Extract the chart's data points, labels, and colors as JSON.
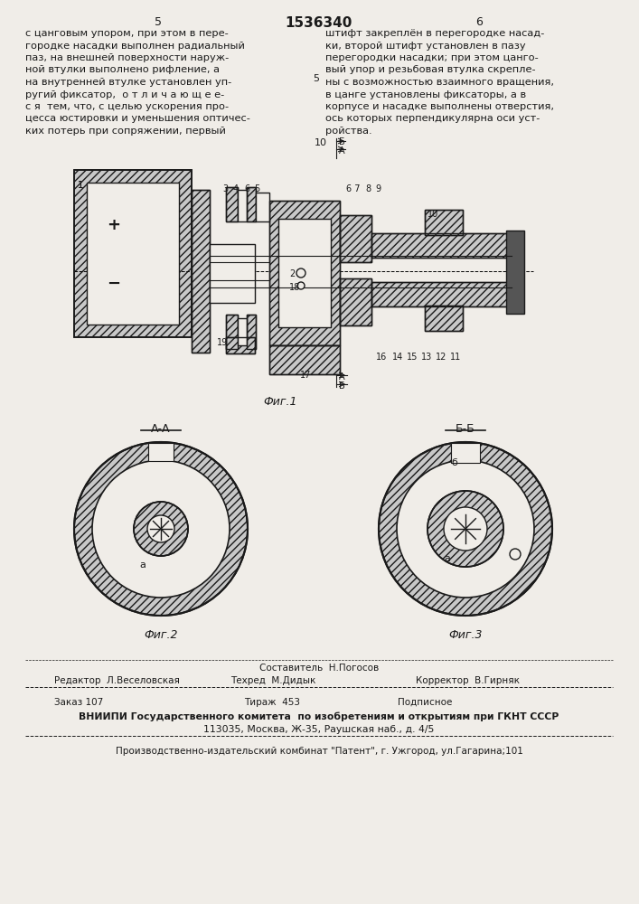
{
  "page_width": 7.07,
  "page_height": 10.0,
  "bg_color": "#f0ede8",
  "text_color": "#1a1a1a",
  "line_color": "#1a1a1a",
  "header_page_left": "5",
  "header_title": "1536340",
  "header_page_right": "6",
  "col1_text": [
    "с цанговым упором, при этом в пере-",
    "городке насадки выполнен радиальный",
    "паз, на внешней поверхности наруж-",
    "ной втулки выполнено рифление, а",
    "на внутренней втулке установлен уп-",
    "ругий фиксатор,  о т л и ч а ю щ е е-",
    "с я  тем, что, с целью ускорения про-",
    "цесса юстировки и уменьшения оптичес-",
    "ких потерь при сопряжении, первый"
  ],
  "col2_text": [
    "штифт закреплён в перегородке насад-",
    "ки, второй штифт установлен в пазу",
    "перегородки насадки; при этом цанго-",
    "вый упор и резьбовая втулка скрепле-",
    "ны с возможностью взаимного вращения,",
    "в цанге установлены фиксаторы, а в",
    "корпусе и насадке выполнены отверстия,",
    "ось которых перпендикулярна оси уст-",
    "ройства."
  ],
  "fig1_label": "Фиг.1",
  "fig2_label": "Фиг.2",
  "fig3_label": "Фиг.3",
  "fig2_section_label": "А-А",
  "fig3_section_label": "Б-Б",
  "footer_composer_label": "Составитель  Н.Погосов",
  "footer_editor_label": "Редактор  Л.Веселовская",
  "footer_techred_label": "Техред  М.Дидык",
  "footer_corrector_label": "Корректор  В.Гирняк",
  "footer_order_label": "Заказ 107",
  "footer_print_label": "Тираж  453",
  "footer_subscription_label": "Подписное",
  "footer_vniip1": "ВНИИПИ Государственного комитета  по изобретениям и открытиям при ГКНТ СССР",
  "footer_vniip2": "113035, Москва, Ж-35, Раушская наб., д. 4/5",
  "footer_pub": "Производственно-издательский комбинат \"Патент\", г. Ужгород, ул.Гагарина;101"
}
